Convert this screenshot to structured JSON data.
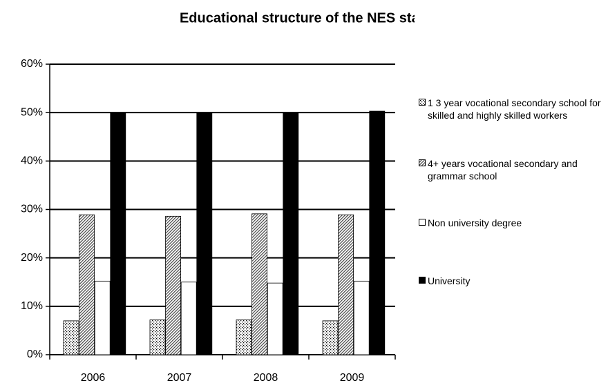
{
  "chart_data": {
    "type": "bar",
    "title": "Educational structure of the NES staff",
    "categories": [
      "2006",
      "2007",
      "2008",
      "2009"
    ],
    "series": [
      {
        "name": "1 3 year vocational secondary school for skilled and highly skilled workers",
        "color": "#ffffff",
        "pattern": "dots",
        "values": [
          7.0,
          7.2,
          7.2,
          7.0
        ]
      },
      {
        "name": "4+ years vocational secondary and grammar school",
        "color": "#ffffff",
        "pattern": "hatch",
        "values": [
          28.9,
          28.6,
          29.1,
          28.9
        ]
      },
      {
        "name": "Non university degree",
        "color": "#ffffff",
        "pattern": "none",
        "values": [
          15.2,
          15.0,
          14.8,
          15.2
        ]
      },
      {
        "name": "University",
        "color": "#000000",
        "pattern": "none",
        "values": [
          49.9,
          49.9,
          49.9,
          50.3
        ]
      }
    ],
    "ylim": [
      0,
      60
    ],
    "yticks": [
      {
        "value": 0,
        "label": "0%"
      },
      {
        "value": 10,
        "label": "10%"
      },
      {
        "value": 20,
        "label": "20%"
      },
      {
        "value": 30,
        "label": "30%"
      },
      {
        "value": 40,
        "label": "40%"
      },
      {
        "value": 50,
        "label": "50%"
      },
      {
        "value": 60,
        "label": "60%"
      }
    ],
    "grid": true,
    "legend": "right"
  }
}
